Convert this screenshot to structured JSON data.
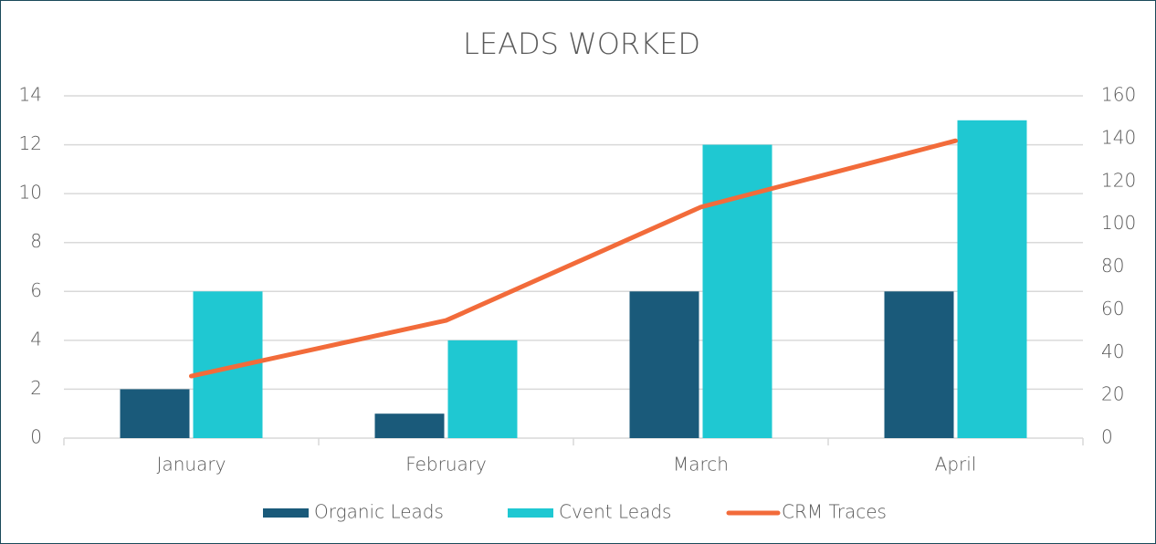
{
  "chart_data": {
    "type": "bar",
    "title": "LEADS WORKED",
    "categories": [
      "January",
      "February",
      "March",
      "April"
    ],
    "series": [
      {
        "name": "Organic Leads",
        "type": "bar",
        "color": "#1a5a7a",
        "values": [
          2,
          1,
          6,
          6
        ]
      },
      {
        "name": "Cvent Leads",
        "type": "bar",
        "color": "#1fc8d2",
        "values": [
          6,
          4,
          12,
          13
        ]
      },
      {
        "name": "CRM Traces",
        "type": "line",
        "axis": "y2",
        "color": "#f26b3a",
        "values": [
          29,
          55,
          108,
          139
        ]
      }
    ],
    "ylim": [
      0,
      14
    ],
    "yticks": [
      0,
      2,
      4,
      6,
      8,
      10,
      12,
      14
    ],
    "y2lim": [
      0,
      160
    ],
    "y2ticks": [
      0,
      20,
      40,
      60,
      80,
      100,
      120,
      140,
      160
    ],
    "grid": true,
    "legend": "bottom"
  }
}
